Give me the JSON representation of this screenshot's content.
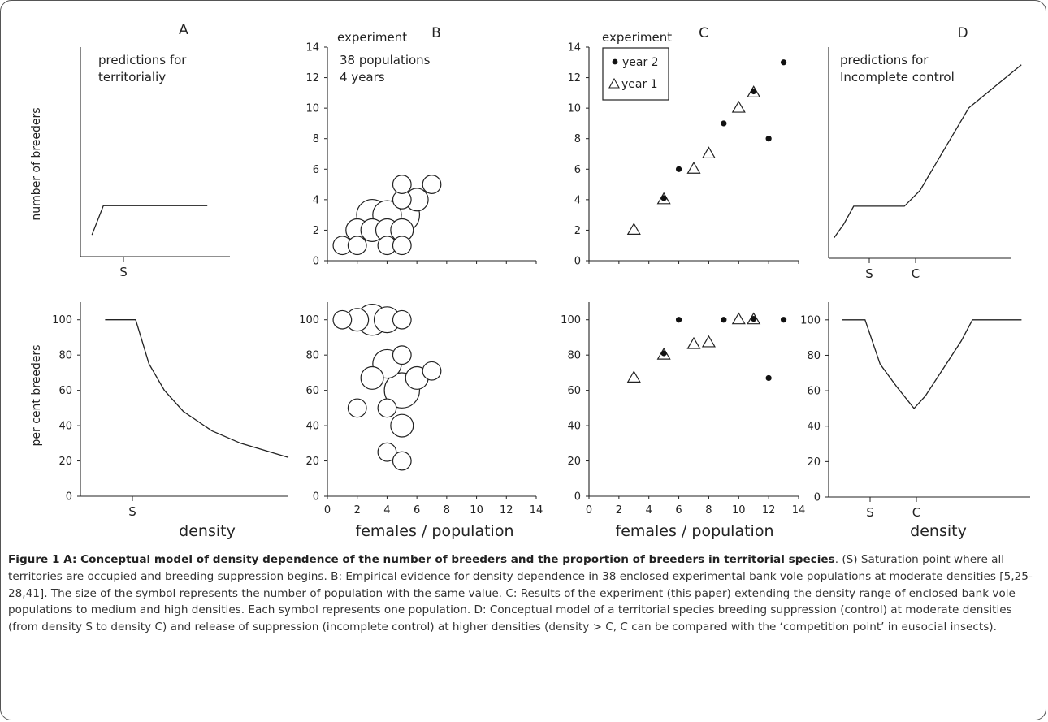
{
  "chart_data": [
    {
      "panel": "A-top",
      "type": "line",
      "title": "A",
      "annotation": "predictions for\nterritorialiy",
      "ylabel": "number of breeders",
      "tick_labels": [
        "S"
      ],
      "points": [
        [
          0.04,
          0.93
        ],
        [
          0.13,
          0.78
        ],
        [
          0.95,
          0.78
        ]
      ],
      "notes": "conceptual, no numeric axes"
    },
    {
      "panel": "B-top",
      "type": "scatter",
      "title": "B",
      "annotation": "experiment",
      "subtitle": "38 populations\n4 years",
      "xlim": [
        0,
        14
      ],
      "ylim": [
        0,
        14
      ],
      "yticks": [
        0,
        2,
        4,
        6,
        8,
        10,
        12,
        14
      ],
      "points": [
        {
          "x": 1,
          "y": 1,
          "n": 1
        },
        {
          "x": 2,
          "y": 1,
          "n": 1
        },
        {
          "x": 4,
          "y": 1,
          "n": 1
        },
        {
          "x": 5,
          "y": 1,
          "n": 1
        },
        {
          "x": 2,
          "y": 2,
          "n": 2
        },
        {
          "x": 3,
          "y": 2,
          "n": 2
        },
        {
          "x": 4,
          "y": 2,
          "n": 2
        },
        {
          "x": 5,
          "y": 2,
          "n": 2
        },
        {
          "x": 3,
          "y": 3,
          "n": 5
        },
        {
          "x": 4,
          "y": 3,
          "n": 4
        },
        {
          "x": 5,
          "y": 3,
          "n": 7
        },
        {
          "x": 6,
          "y": 4,
          "n": 2
        },
        {
          "x": 5,
          "y": 4,
          "n": 1
        },
        {
          "x": 5,
          "y": 5,
          "n": 1
        },
        {
          "x": 7,
          "y": 5,
          "n": 1
        }
      ]
    },
    {
      "panel": "C-top",
      "type": "scatter",
      "title": "C",
      "annotation": "experiment",
      "xlim": [
        0,
        14
      ],
      "ylim": [
        0,
        14
      ],
      "yticks": [
        0,
        2,
        4,
        6,
        8,
        10,
        12,
        14
      ],
      "legend": [
        "year 2",
        "year 1"
      ],
      "series": [
        {
          "name": "year 2",
          "marker": "dot",
          "points": [
            [
              5,
              4.1
            ],
            [
              6,
              6
            ],
            [
              9,
              9
            ],
            [
              11,
              11.1
            ],
            [
              12,
              8
            ],
            [
              13,
              13
            ]
          ]
        },
        {
          "name": "year 1",
          "marker": "triangle",
          "points": [
            [
              3,
              2
            ],
            [
              5,
              4
            ],
            [
              7,
              6
            ],
            [
              8,
              7
            ],
            [
              10,
              10
            ],
            [
              11,
              11
            ]
          ]
        }
      ]
    },
    {
      "panel": "D-top",
      "type": "line",
      "title": "D",
      "annotation": "predictions for\nIncomplete control",
      "tick_labels": [
        "S",
        "C"
      ],
      "points": [
        [
          0.02,
          0.92
        ],
        [
          0.07,
          0.85
        ],
        [
          0.12,
          0.76
        ],
        [
          0.38,
          0.76
        ],
        [
          0.46,
          0.68
        ],
        [
          0.71,
          0.26
        ],
        [
          0.98,
          0.04
        ]
      ],
      "notes": "conceptual, no numeric axes"
    },
    {
      "panel": "A-bottom",
      "type": "line",
      "ylabel": "per cent breeders",
      "xlabel": "density",
      "ylim": [
        0,
        110
      ],
      "yticks": [
        0,
        20,
        40,
        60,
        80,
        100
      ],
      "tick_labels": [
        "S"
      ],
      "points": [
        [
          0.04,
          100
        ],
        [
          0.2,
          100
        ],
        [
          0.27,
          75
        ],
        [
          0.35,
          60
        ],
        [
          0.45,
          48
        ],
        [
          0.6,
          37
        ],
        [
          0.75,
          30
        ],
        [
          1.0,
          22
        ]
      ]
    },
    {
      "panel": "B-bottom",
      "type": "scatter",
      "xlabel": "females / population",
      "xlim": [
        0,
        14
      ],
      "ylim": [
        0,
        110
      ],
      "xticks": [
        0,
        2,
        4,
        6,
        8,
        10,
        12,
        14
      ],
      "yticks": [
        0,
        20,
        40,
        60,
        80,
        100
      ],
      "points": [
        {
          "x": 1,
          "y": 100,
          "n": 1
        },
        {
          "x": 2,
          "y": 100,
          "n": 2
        },
        {
          "x": 3,
          "y": 100,
          "n": 5
        },
        {
          "x": 4,
          "y": 100,
          "n": 3
        },
        {
          "x": 5,
          "y": 100,
          "n": 1
        },
        {
          "x": 4,
          "y": 75,
          "n": 4
        },
        {
          "x": 5,
          "y": 80,
          "n": 1
        },
        {
          "x": 3,
          "y": 67,
          "n": 2
        },
        {
          "x": 6,
          "y": 67,
          "n": 2
        },
        {
          "x": 7,
          "y": 71,
          "n": 1
        },
        {
          "x": 5,
          "y": 60,
          "n": 7
        },
        {
          "x": 2,
          "y": 50,
          "n": 1
        },
        {
          "x": 4,
          "y": 50,
          "n": 1
        },
        {
          "x": 5,
          "y": 40,
          "n": 2
        },
        {
          "x": 4,
          "y": 25,
          "n": 1
        },
        {
          "x": 5,
          "y": 20,
          "n": 1
        }
      ]
    },
    {
      "panel": "C-bottom",
      "type": "scatter",
      "xlabel": "females / population",
      "xlim": [
        0,
        14
      ],
      "ylim": [
        0,
        110
      ],
      "xticks": [
        0,
        2,
        4,
        6,
        8,
        10,
        12,
        14
      ],
      "yticks": [
        0,
        20,
        40,
        60,
        80,
        100
      ],
      "series": [
        {
          "name": "year 2",
          "marker": "dot",
          "points": [
            [
              5,
              81
            ],
            [
              6,
              100
            ],
            [
              9,
              100
            ],
            [
              11,
              100.5
            ],
            [
              12,
              67
            ],
            [
              13,
              100
            ]
          ]
        },
        {
          "name": "year 1",
          "marker": "triangle",
          "points": [
            [
              3,
              67
            ],
            [
              5,
              80
            ],
            [
              7,
              86
            ],
            [
              8,
              87
            ],
            [
              10,
              100
            ],
            [
              11,
              100
            ]
          ]
        }
      ]
    },
    {
      "panel": "D-bottom",
      "type": "line",
      "xlabel": "density",
      "ylim": [
        0,
        110
      ],
      "yticks": [
        0,
        20,
        40,
        60,
        80,
        100
      ],
      "tick_labels": [
        "S",
        "C"
      ],
      "points": [
        [
          0.03,
          100
        ],
        [
          0.15,
          100
        ],
        [
          0.23,
          75
        ],
        [
          0.32,
          62
        ],
        [
          0.41,
          50
        ],
        [
          0.47,
          57
        ],
        [
          0.58,
          75
        ],
        [
          0.66,
          88
        ],
        [
          0.72,
          100
        ],
        [
          0.98,
          100
        ]
      ]
    }
  ],
  "caption": {
    "bold": "Figure 1 A: Conceptual model of density dependence of the number of breeders and the proportion of breeders in territorial species",
    "text": ". (S) Saturation point where all territories are occupied and breeding suppression begins. B: Empirical evidence for density dependence in 38 enclosed experimental bank vole populations at moderate densities [5,25-28,41]. The size of the symbol represents the number of population with the same value. C: Results of the experiment (this paper) extending the density range of enclosed bank vole populations to medium and high densities. Each symbol represents one population. D: Conceptual model of a territorial species breeding suppression (control) at moderate densities (from density S to density C) and release of suppression (incomplete control) at higher densities (density > C, C can be compared with the ‘competition point’ in eusocial insects)."
  }
}
